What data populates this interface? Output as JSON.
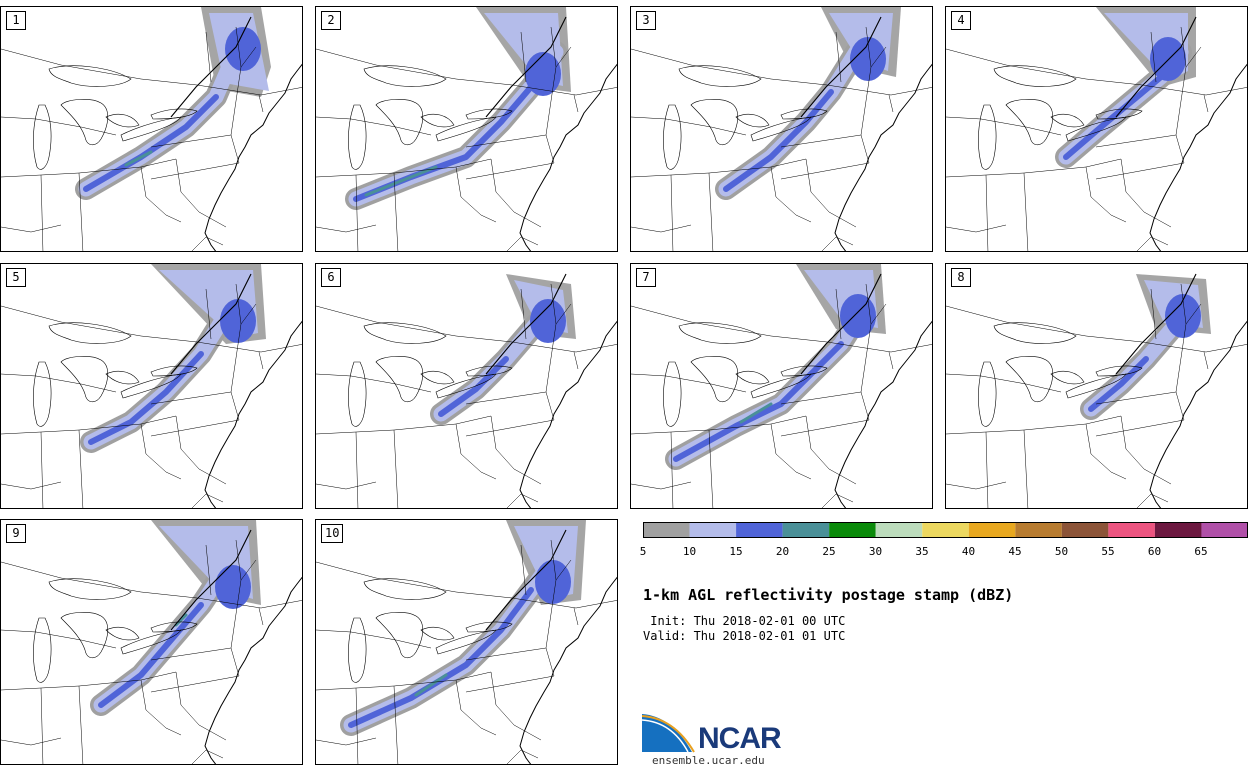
{
  "panels": [
    {
      "label": "1"
    },
    {
      "label": "2"
    },
    {
      "label": "3"
    },
    {
      "label": "4"
    },
    {
      "label": "5"
    },
    {
      "label": "6"
    },
    {
      "label": "7"
    },
    {
      "label": "8"
    },
    {
      "label": "9"
    },
    {
      "label": "10"
    }
  ],
  "colorbar": {
    "colors": [
      "#a0a0a0",
      "#b4bcea",
      "#5064d8",
      "#4a9098",
      "#0a8a0a",
      "#bcdcbc",
      "#ecd860",
      "#e8a820",
      "#b87c30",
      "#8c5438",
      "#ec5480",
      "#6c1840",
      "#b050a8"
    ],
    "ticks": [
      "5",
      "10",
      "15",
      "20",
      "25",
      "30",
      "35",
      "40",
      "45",
      "50",
      "55",
      "60",
      "65"
    ]
  },
  "title": "1-km AGL reflectivity postage stamp (dBZ)",
  "init": " Init: Thu 2018-02-01 00 UTC",
  "valid": "Valid: Thu 2018-02-01 01 UTC",
  "logo_text": "NCAR",
  "url": "ensemble.ucar.edu"
}
